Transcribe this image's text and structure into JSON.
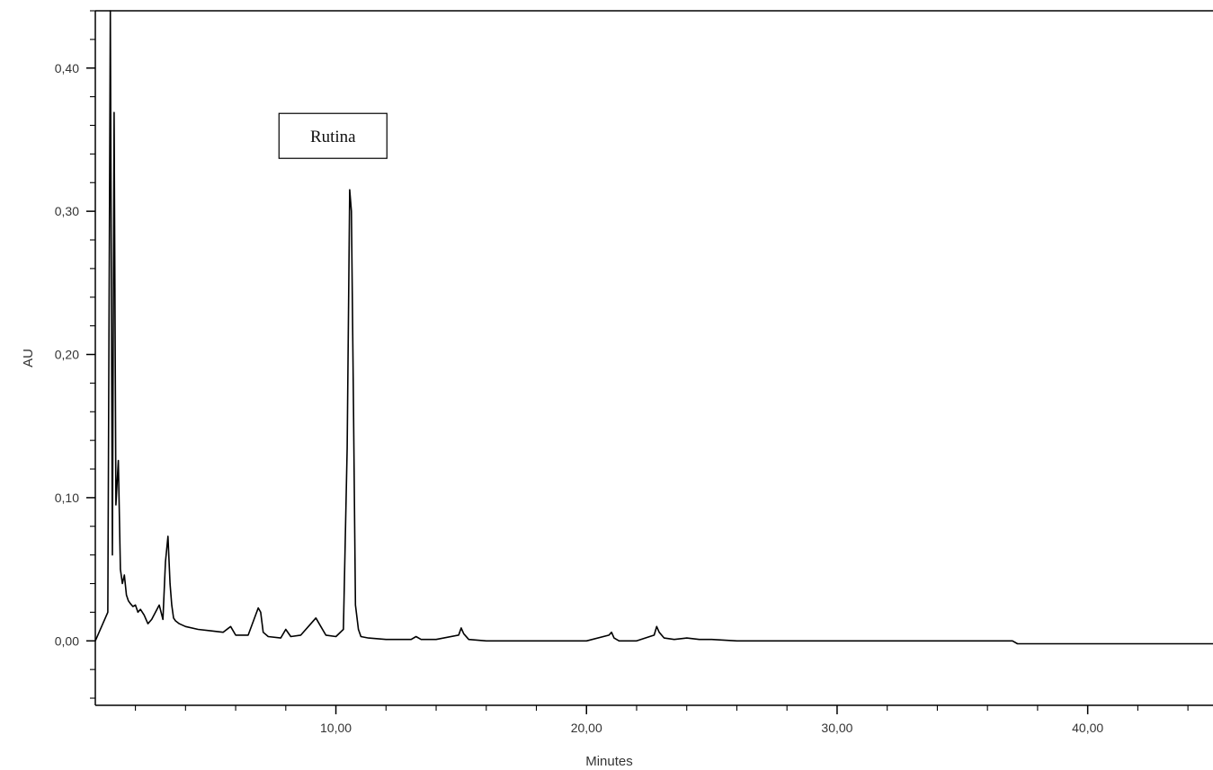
{
  "chart_data": {
    "type": "line",
    "title": "",
    "xlabel": "Minutes",
    "ylabel": "AU",
    "xlim": [
      0.4,
      45.0
    ],
    "ylim": [
      -0.045,
      0.44
    ],
    "x_ticks": [
      {
        "value": 10,
        "label": "10,00"
      },
      {
        "value": 20,
        "label": "20,00"
      },
      {
        "value": 30,
        "label": "30,00"
      },
      {
        "value": 40,
        "label": "40,00"
      }
    ],
    "y_ticks": [
      {
        "value": 0.0,
        "label": "0,00"
      },
      {
        "value": 0.1,
        "label": "0,10"
      },
      {
        "value": 0.2,
        "label": "0,20"
      },
      {
        "value": 0.3,
        "label": "0,30"
      },
      {
        "value": 0.4,
        "label": "0,40"
      }
    ],
    "grid": false,
    "legend": "none",
    "line_color": "#000000",
    "series": [
      {
        "x": [
          0.4,
          0.9,
          1.0,
          1.08,
          1.15,
          1.22,
          1.32,
          1.4,
          1.48,
          1.56,
          1.64,
          1.72,
          1.8,
          1.9,
          2.0,
          2.1,
          2.2,
          2.35,
          2.5,
          2.65,
          2.8,
          2.95,
          3.1,
          3.2,
          3.3,
          3.38,
          3.45,
          3.52,
          3.6,
          3.75,
          4.0,
          4.5,
          5.0,
          5.5,
          5.8,
          6.0,
          6.5,
          6.9,
          7.0,
          7.1,
          7.3,
          7.8,
          8.0,
          8.2,
          8.6,
          9.0,
          9.2,
          9.4,
          9.6,
          10.0,
          10.3,
          10.45,
          10.55,
          10.62,
          10.7,
          10.78,
          10.9,
          11.0,
          11.3,
          12.0,
          13.0,
          13.2,
          13.4,
          14.0,
          14.9,
          15.0,
          15.1,
          15.3,
          16.0,
          18.0,
          20.0,
          20.9,
          21.0,
          21.1,
          21.3,
          22.0,
          22.7,
          22.8,
          22.9,
          23.1,
          23.5,
          24.0,
          24.5,
          25.0,
          26.0,
          30.0,
          35.0,
          37.0,
          37.2,
          40.0,
          45.0
        ],
        "y": [
          0.0,
          0.02,
          0.44,
          0.06,
          0.369,
          0.095,
          0.126,
          0.05,
          0.04,
          0.046,
          0.032,
          0.028,
          0.026,
          0.024,
          0.025,
          0.02,
          0.022,
          0.018,
          0.012,
          0.015,
          0.02,
          0.025,
          0.015,
          0.055,
          0.073,
          0.04,
          0.025,
          0.016,
          0.014,
          0.012,
          0.01,
          0.008,
          0.007,
          0.006,
          0.01,
          0.004,
          0.004,
          0.023,
          0.02,
          0.006,
          0.003,
          0.002,
          0.008,
          0.003,
          0.004,
          0.012,
          0.016,
          0.01,
          0.004,
          0.003,
          0.008,
          0.135,
          0.315,
          0.3,
          0.165,
          0.025,
          0.008,
          0.003,
          0.002,
          0.001,
          0.001,
          0.003,
          0.001,
          0.001,
          0.004,
          0.009,
          0.005,
          0.001,
          0.0,
          0.0,
          0.0,
          0.004,
          0.006,
          0.002,
          0.0,
          0.0,
          0.004,
          0.01,
          0.006,
          0.002,
          0.001,
          0.002,
          0.001,
          0.001,
          0.0,
          0.0,
          0.0,
          0.0,
          -0.002,
          -0.002,
          -0.002
        ]
      }
    ],
    "annotations": [
      {
        "text": "Rutina",
        "x": 10.6,
        "y": 0.315
      }
    ]
  }
}
